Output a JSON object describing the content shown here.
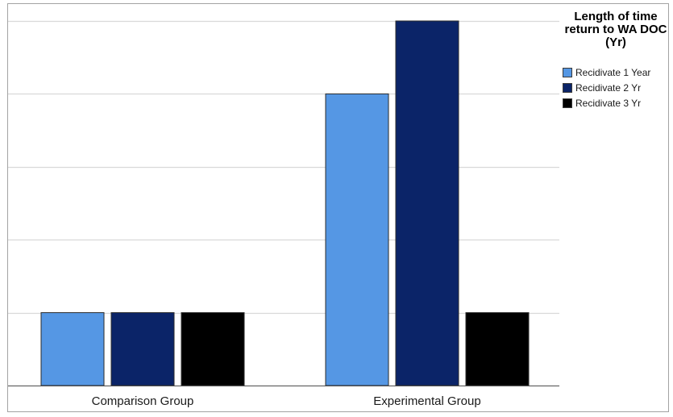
{
  "chart_data": {
    "type": "bar",
    "categories": [
      "Comparison Group",
      "Experimental Group"
    ],
    "series": [
      {
        "name": "Recidivate 1 Year",
        "values": [
          1,
          4
        ],
        "color": "#5597e4"
      },
      {
        "name": "Recidivate 2 Yr",
        "values": [
          1,
          5
        ],
        "color": "#0b2468"
      },
      {
        "name": "Recidivate 3 Yr",
        "values": [
          1,
          1
        ],
        "color": "#000000"
      }
    ],
    "ylim": [
      0,
      5
    ],
    "yticks": [
      0,
      1,
      2,
      3,
      4,
      5
    ],
    "grid": true,
    "legend_title": "Length of time return to WA DOC (Yr)",
    "legend_position": "top-right",
    "xlabel": "",
    "ylabel": ""
  }
}
